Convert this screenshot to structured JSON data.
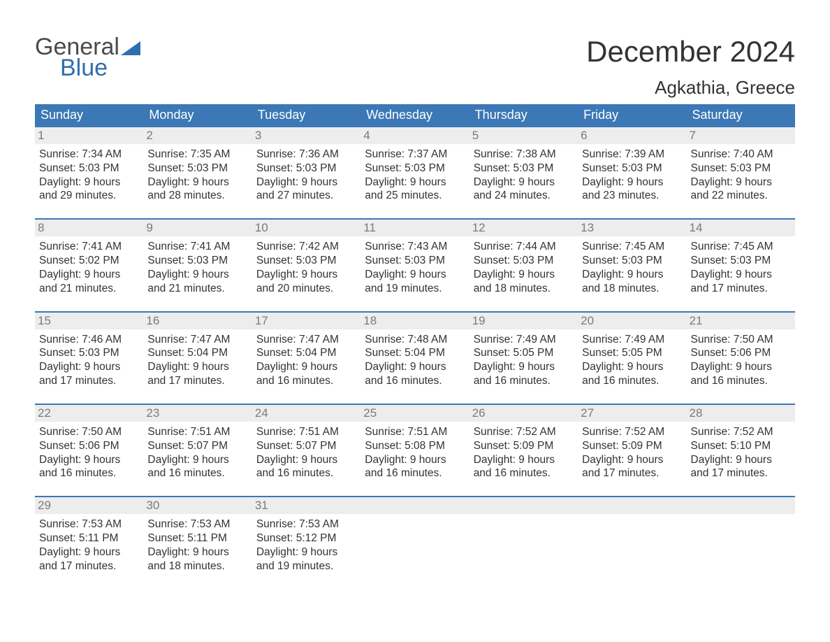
{
  "logo": {
    "general": "General",
    "blue": "Blue"
  },
  "title": "December 2024",
  "location": "Agkathia, Greece",
  "colors": {
    "header_bg": "#3b78b5",
    "header_text": "#ffffff",
    "daynum_bg": "#ededed",
    "daynum_text": "#7a7a7a",
    "body_text": "#333333",
    "row_border": "#3b78b5",
    "logo_blue": "#2f6fae",
    "page_bg": "#ffffff"
  },
  "fonts": {
    "title_size": 42,
    "location_size": 26,
    "header_size": 18,
    "daynum_size": 17,
    "body_size": 15.5
  },
  "day_names": [
    "Sunday",
    "Monday",
    "Tuesday",
    "Wednesday",
    "Thursday",
    "Friday",
    "Saturday"
  ],
  "weeks": [
    [
      {
        "num": "1",
        "sunrise": "Sunrise: 7:34 AM",
        "sunset": "Sunset: 5:03 PM",
        "dl1": "Daylight: 9 hours",
        "dl2": "and 29 minutes."
      },
      {
        "num": "2",
        "sunrise": "Sunrise: 7:35 AM",
        "sunset": "Sunset: 5:03 PM",
        "dl1": "Daylight: 9 hours",
        "dl2": "and 28 minutes."
      },
      {
        "num": "3",
        "sunrise": "Sunrise: 7:36 AM",
        "sunset": "Sunset: 5:03 PM",
        "dl1": "Daylight: 9 hours",
        "dl2": "and 27 minutes."
      },
      {
        "num": "4",
        "sunrise": "Sunrise: 7:37 AM",
        "sunset": "Sunset: 5:03 PM",
        "dl1": "Daylight: 9 hours",
        "dl2": "and 25 minutes."
      },
      {
        "num": "5",
        "sunrise": "Sunrise: 7:38 AM",
        "sunset": "Sunset: 5:03 PM",
        "dl1": "Daylight: 9 hours",
        "dl2": "and 24 minutes."
      },
      {
        "num": "6",
        "sunrise": "Sunrise: 7:39 AM",
        "sunset": "Sunset: 5:03 PM",
        "dl1": "Daylight: 9 hours",
        "dl2": "and 23 minutes."
      },
      {
        "num": "7",
        "sunrise": "Sunrise: 7:40 AM",
        "sunset": "Sunset: 5:03 PM",
        "dl1": "Daylight: 9 hours",
        "dl2": "and 22 minutes."
      }
    ],
    [
      {
        "num": "8",
        "sunrise": "Sunrise: 7:41 AM",
        "sunset": "Sunset: 5:02 PM",
        "dl1": "Daylight: 9 hours",
        "dl2": "and 21 minutes."
      },
      {
        "num": "9",
        "sunrise": "Sunrise: 7:41 AM",
        "sunset": "Sunset: 5:03 PM",
        "dl1": "Daylight: 9 hours",
        "dl2": "and 21 minutes."
      },
      {
        "num": "10",
        "sunrise": "Sunrise: 7:42 AM",
        "sunset": "Sunset: 5:03 PM",
        "dl1": "Daylight: 9 hours",
        "dl2": "and 20 minutes."
      },
      {
        "num": "11",
        "sunrise": "Sunrise: 7:43 AM",
        "sunset": "Sunset: 5:03 PM",
        "dl1": "Daylight: 9 hours",
        "dl2": "and 19 minutes."
      },
      {
        "num": "12",
        "sunrise": "Sunrise: 7:44 AM",
        "sunset": "Sunset: 5:03 PM",
        "dl1": "Daylight: 9 hours",
        "dl2": "and 18 minutes."
      },
      {
        "num": "13",
        "sunrise": "Sunrise: 7:45 AM",
        "sunset": "Sunset: 5:03 PM",
        "dl1": "Daylight: 9 hours",
        "dl2": "and 18 minutes."
      },
      {
        "num": "14",
        "sunrise": "Sunrise: 7:45 AM",
        "sunset": "Sunset: 5:03 PM",
        "dl1": "Daylight: 9 hours",
        "dl2": "and 17 minutes."
      }
    ],
    [
      {
        "num": "15",
        "sunrise": "Sunrise: 7:46 AM",
        "sunset": "Sunset: 5:03 PM",
        "dl1": "Daylight: 9 hours",
        "dl2": "and 17 minutes."
      },
      {
        "num": "16",
        "sunrise": "Sunrise: 7:47 AM",
        "sunset": "Sunset: 5:04 PM",
        "dl1": "Daylight: 9 hours",
        "dl2": "and 17 minutes."
      },
      {
        "num": "17",
        "sunrise": "Sunrise: 7:47 AM",
        "sunset": "Sunset: 5:04 PM",
        "dl1": "Daylight: 9 hours",
        "dl2": "and 16 minutes."
      },
      {
        "num": "18",
        "sunrise": "Sunrise: 7:48 AM",
        "sunset": "Sunset: 5:04 PM",
        "dl1": "Daylight: 9 hours",
        "dl2": "and 16 minutes."
      },
      {
        "num": "19",
        "sunrise": "Sunrise: 7:49 AM",
        "sunset": "Sunset: 5:05 PM",
        "dl1": "Daylight: 9 hours",
        "dl2": "and 16 minutes."
      },
      {
        "num": "20",
        "sunrise": "Sunrise: 7:49 AM",
        "sunset": "Sunset: 5:05 PM",
        "dl1": "Daylight: 9 hours",
        "dl2": "and 16 minutes."
      },
      {
        "num": "21",
        "sunrise": "Sunrise: 7:50 AM",
        "sunset": "Sunset: 5:06 PM",
        "dl1": "Daylight: 9 hours",
        "dl2": "and 16 minutes."
      }
    ],
    [
      {
        "num": "22",
        "sunrise": "Sunrise: 7:50 AM",
        "sunset": "Sunset: 5:06 PM",
        "dl1": "Daylight: 9 hours",
        "dl2": "and 16 minutes."
      },
      {
        "num": "23",
        "sunrise": "Sunrise: 7:51 AM",
        "sunset": "Sunset: 5:07 PM",
        "dl1": "Daylight: 9 hours",
        "dl2": "and 16 minutes."
      },
      {
        "num": "24",
        "sunrise": "Sunrise: 7:51 AM",
        "sunset": "Sunset: 5:07 PM",
        "dl1": "Daylight: 9 hours",
        "dl2": "and 16 minutes."
      },
      {
        "num": "25",
        "sunrise": "Sunrise: 7:51 AM",
        "sunset": "Sunset: 5:08 PM",
        "dl1": "Daylight: 9 hours",
        "dl2": "and 16 minutes."
      },
      {
        "num": "26",
        "sunrise": "Sunrise: 7:52 AM",
        "sunset": "Sunset: 5:09 PM",
        "dl1": "Daylight: 9 hours",
        "dl2": "and 16 minutes."
      },
      {
        "num": "27",
        "sunrise": "Sunrise: 7:52 AM",
        "sunset": "Sunset: 5:09 PM",
        "dl1": "Daylight: 9 hours",
        "dl2": "and 17 minutes."
      },
      {
        "num": "28",
        "sunrise": "Sunrise: 7:52 AM",
        "sunset": "Sunset: 5:10 PM",
        "dl1": "Daylight: 9 hours",
        "dl2": "and 17 minutes."
      }
    ],
    [
      {
        "num": "29",
        "sunrise": "Sunrise: 7:53 AM",
        "sunset": "Sunset: 5:11 PM",
        "dl1": "Daylight: 9 hours",
        "dl2": "and 17 minutes."
      },
      {
        "num": "30",
        "sunrise": "Sunrise: 7:53 AM",
        "sunset": "Sunset: 5:11 PM",
        "dl1": "Daylight: 9 hours",
        "dl2": "and 18 minutes."
      },
      {
        "num": "31",
        "sunrise": "Sunrise: 7:53 AM",
        "sunset": "Sunset: 5:12 PM",
        "dl1": "Daylight: 9 hours",
        "dl2": "and 19 minutes."
      },
      {
        "num": "",
        "sunrise": "",
        "sunset": "",
        "dl1": "",
        "dl2": ""
      },
      {
        "num": "",
        "sunrise": "",
        "sunset": "",
        "dl1": "",
        "dl2": ""
      },
      {
        "num": "",
        "sunrise": "",
        "sunset": "",
        "dl1": "",
        "dl2": ""
      },
      {
        "num": "",
        "sunrise": "",
        "sunset": "",
        "dl1": "",
        "dl2": ""
      }
    ]
  ]
}
